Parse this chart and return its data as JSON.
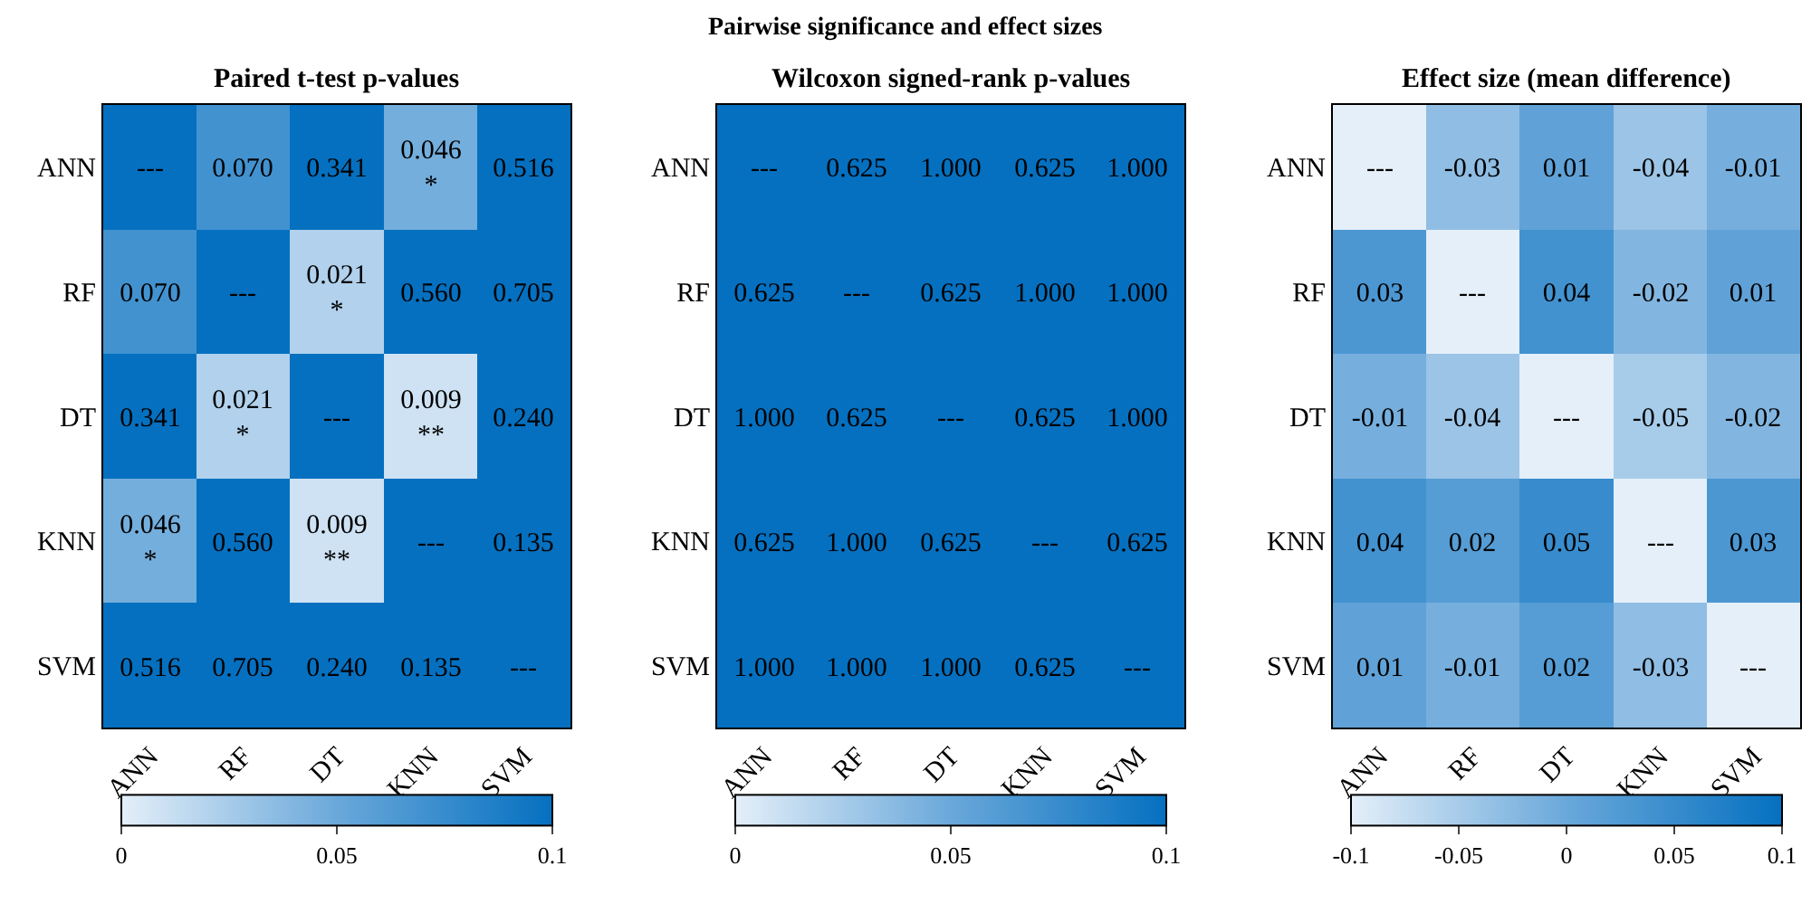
{
  "chart_data": [
    {
      "type": "heatmap",
      "title": "Paired t-test p-values",
      "annotations": [
        "Pairwise significance and effect sizes"
      ],
      "color": "#0570c0",
      "categories": [
        "ANN",
        "RF",
        "DT",
        "KNN",
        "SVM"
      ],
      "y_categories": [
        "ANN",
        "RF",
        "DT",
        "KNN",
        "SVM"
      ],
      "cells": [
        [
          null,
          0.07,
          0.341,
          0.046,
          0.516
        ],
        [
          0.07,
          null,
          0.021,
          0.56,
          0.705
        ],
        [
          0.341,
          0.021,
          null,
          0.009,
          0.24
        ],
        [
          0.046,
          0.56,
          0.009,
          null,
          0.135
        ],
        [
          0.516,
          0.705,
          0.24,
          0.135,
          null
        ]
      ],
      "cell_labels": [
        [
          "---",
          "0.070",
          "0.341",
          "0.046\n*",
          "0.516"
        ],
        [
          "0.070",
          "---",
          "0.021\n*",
          "0.560",
          "0.705"
        ],
        [
          "0.341",
          "0.021\n*",
          "---",
          "0.009\n**",
          "0.240"
        ],
        [
          "0.046\n*",
          "0.560",
          "0.009\n**",
          "---",
          "0.135"
        ],
        [
          "0.516",
          "0.705",
          "0.240",
          "0.135",
          "---"
        ]
      ],
      "clim": [
        0,
        0.1
      ],
      "cticks": [
        0,
        0.05,
        0.1
      ]
    },
    {
      "type": "heatmap",
      "title": "Wilcoxon signed-rank p-values",
      "color": "#0570c0",
      "categories": [
        "ANN",
        "RF",
        "DT",
        "KNN",
        "SVM"
      ],
      "y_categories": [
        "ANN",
        "RF",
        "DT",
        "KNN",
        "SVM"
      ],
      "cells": [
        [
          null,
          0.625,
          1.0,
          0.625,
          1.0
        ],
        [
          0.625,
          null,
          0.625,
          1.0,
          1.0
        ],
        [
          1.0,
          0.625,
          null,
          0.625,
          1.0
        ],
        [
          0.625,
          1.0,
          0.625,
          null,
          0.625
        ],
        [
          1.0,
          1.0,
          1.0,
          0.625,
          null
        ]
      ],
      "cell_labels": [
        [
          "---",
          "0.625",
          "1.000",
          "0.625",
          "1.000"
        ],
        [
          "0.625",
          "---",
          "0.625",
          "1.000",
          "1.000"
        ],
        [
          "1.000",
          "0.625",
          "---",
          "0.625",
          "1.000"
        ],
        [
          "0.625",
          "1.000",
          "0.625",
          "---",
          "0.625"
        ],
        [
          "1.000",
          "1.000",
          "1.000",
          "0.625",
          "---"
        ]
      ],
      "clim": [
        0,
        0.1
      ],
      "cticks": [
        0,
        0.05,
        0.1
      ]
    },
    {
      "type": "heatmap",
      "title": "Effect size (mean difference)",
      "color": "#e4eff9",
      "categories": [
        "ANN",
        "RF",
        "DT",
        "KNN",
        "SVM"
      ],
      "y_categories": [
        "ANN",
        "RF",
        "DT",
        "KNN",
        "SVM"
      ],
      "cells": [
        [
          null,
          -0.03,
          0.01,
          -0.04,
          -0.01
        ],
        [
          0.03,
          null,
          0.04,
          -0.02,
          0.01
        ],
        [
          -0.01,
          -0.04,
          null,
          -0.05,
          -0.02
        ],
        [
          0.04,
          0.02,
          0.05,
          null,
          0.03
        ],
        [
          0.01,
          -0.01,
          0.02,
          -0.03,
          null
        ]
      ],
      "cell_labels": [
        [
          "---",
          "-0.03",
          "0.01",
          "-0.04",
          "-0.01"
        ],
        [
          "0.03",
          "---",
          "0.04",
          "-0.02",
          "0.01"
        ],
        [
          "-0.01",
          "-0.04",
          "---",
          "-0.05",
          "-0.02"
        ],
        [
          "0.04",
          "0.02",
          "0.05",
          "---",
          "0.03"
        ],
        [
          "0.01",
          "-0.01",
          "0.02",
          "-0.03",
          "---"
        ]
      ],
      "clim": [
        -0.1,
        0.1
      ],
      "cticks": [
        -0.1,
        -0.05,
        0,
        0.05,
        0.1
      ]
    }
  ]
}
